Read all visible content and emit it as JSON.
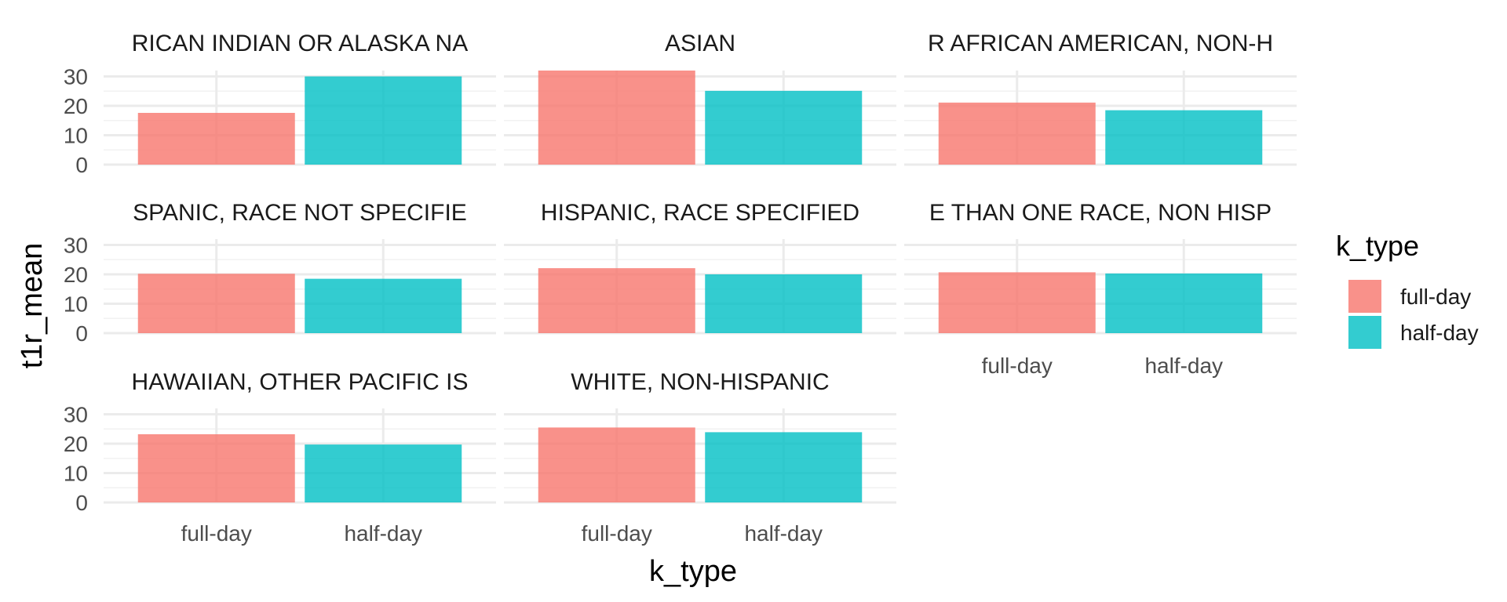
{
  "chart_data": {
    "type": "bar",
    "layout": "faceted",
    "xlabel": "k_type",
    "ylabel": "t1r_mean",
    "categories": [
      "full-day",
      "half-day"
    ],
    "yticks": [
      0,
      10,
      20,
      30
    ],
    "ylim": [
      0,
      32
    ],
    "legend": {
      "title": "k_type",
      "position": "right",
      "entries": [
        {
          "label": "full-day",
          "color": "#F8766D"
        },
        {
          "label": "half-day",
          "color": "#00BFC4"
        }
      ]
    },
    "grid": true,
    "facets": [
      {
        "title": "RICAN INDIAN OR ALASKA NA",
        "values": [
          17.6,
          30.0
        ]
      },
      {
        "title": "ASIAN",
        "values": [
          32.0,
          25.1
        ]
      },
      {
        "title": "R AFRICAN AMERICAN, NON-H",
        "values": [
          21.1,
          18.5
        ]
      },
      {
        "title": "SPANIC, RACE NOT SPECIFIE",
        "values": [
          20.2,
          18.5
        ]
      },
      {
        "title": "HISPANIC, RACE SPECIFIED",
        "values": [
          22.1,
          20.0
        ]
      },
      {
        "title": "E THAN ONE RACE, NON HISP",
        "values": [
          20.7,
          20.3
        ]
      },
      {
        "title": "HAWAIIAN, OTHER PACIFIC IS",
        "values": [
          23.2,
          19.7
        ]
      },
      {
        "title": "WHITE, NON-HISPANIC",
        "values": [
          25.5,
          23.9
        ]
      }
    ]
  }
}
